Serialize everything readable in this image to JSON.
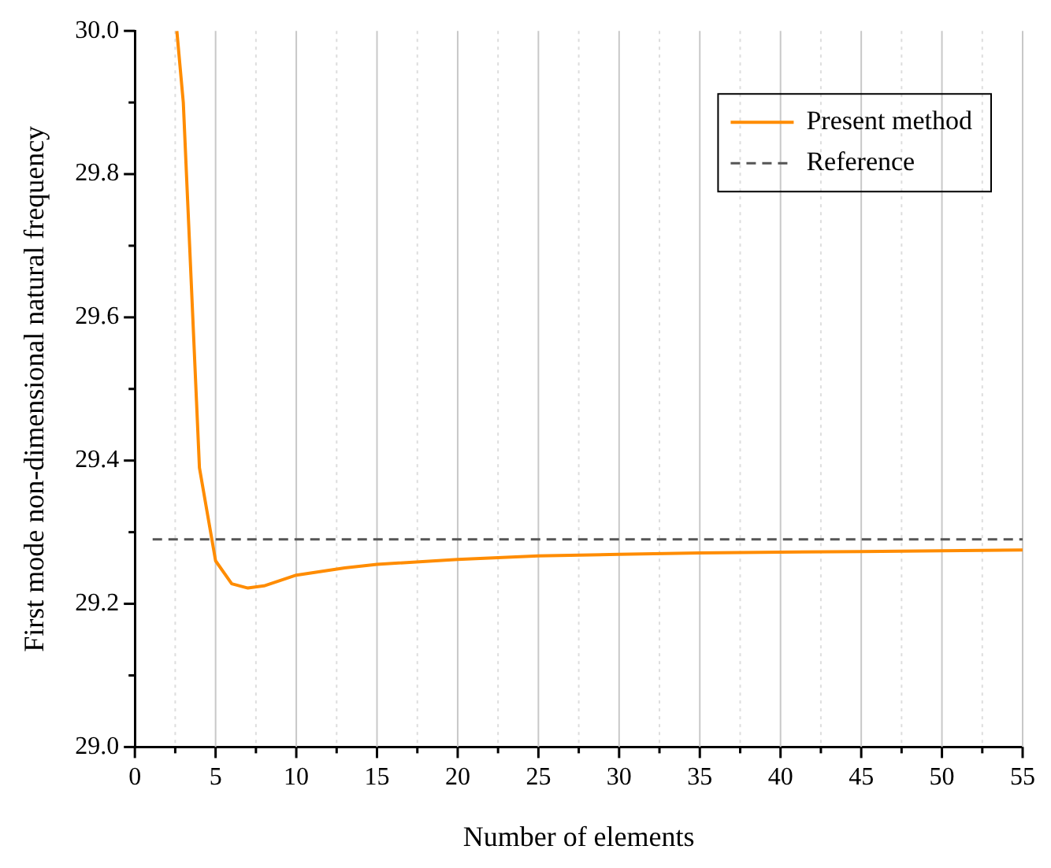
{
  "chart_data": {
    "type": "line",
    "xlabel": "Number of elements",
    "ylabel": "First mode non-dimensional natural frequency",
    "xlim": [
      0,
      55
    ],
    "xticks": [
      0,
      {
        "value": 2.5,
        "label": null
      },
      5,
      {
        "value": 7.5,
        "label": null
      },
      10,
      {
        "value": 12.5,
        "label": null
      },
      15,
      {
        "value": 17.5,
        "label": null
      },
      20,
      {
        "value": 22.5,
        "label": null
      },
      25,
      {
        "value": 27.5,
        "label": null
      },
      30,
      {
        "value": 32.5,
        "label": null
      },
      35,
      {
        "value": 37.5,
        "label": null
      },
      40,
      {
        "value": 42.5,
        "label": null
      },
      45,
      {
        "value": 47.5,
        "label": null
      },
      50,
      {
        "value": 52.5,
        "label": null
      },
      55
    ],
    "ylim": [
      29.0,
      30.0
    ],
    "yticks": [
      {
        "value": 29,
        "label": "29.0"
      },
      {
        "value": 29.1,
        "label": null
      },
      29.2,
      {
        "value": 29.3,
        "label": null
      },
      29.4,
      {
        "value": 29.5,
        "label": null
      },
      29.6,
      {
        "value": 29.7,
        "label": null
      },
      29.8,
      {
        "value": 29.9,
        "label": null
      },
      {
        "value": 30,
        "label": "30.0"
      }
    ],
    "grid": "x",
    "legend": "top right",
    "marker": "none",
    "line_style": "solid",
    "series": [
      {
        "name": "Present method",
        "color": "#ff8c00",
        "x": [
          2.6,
          3,
          4,
          5,
          6,
          7,
          8,
          10,
          13,
          15,
          20,
          25,
          30,
          35,
          40,
          45,
          50,
          55
        ],
        "values": [
          30.0,
          29.9,
          29.39,
          29.26,
          29.228,
          29.222,
          29.225,
          29.24,
          29.25,
          29.255,
          29.262,
          29.267,
          29.269,
          29.271,
          29.272,
          29.273,
          29.274,
          29.275
        ]
      }
    ],
    "ref_lines": [
      {
        "axis": "y",
        "value": 29.29,
        "label": "Reference",
        "color": "#555555",
        "line_style": "dashed"
      }
    ]
  }
}
